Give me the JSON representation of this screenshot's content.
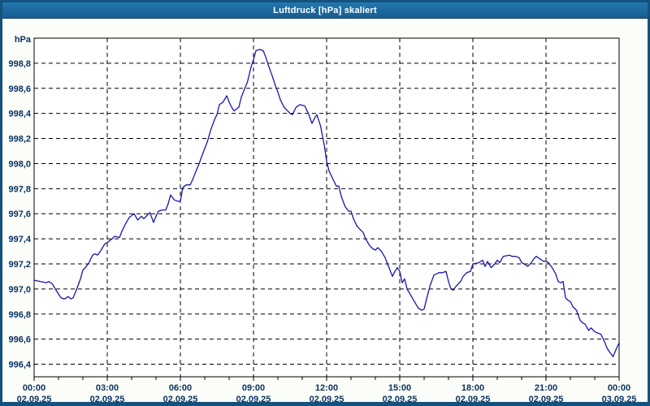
{
  "window": {
    "title": "Luftdruck [hPa] skaliert"
  },
  "colors": {
    "titlebar": "#1b6ba4",
    "window_border": "#14517d",
    "chart_background": "#fbfdf9",
    "plot_background": "#ffffff",
    "grid": "#000000",
    "axis": "#000000",
    "label": "#0b3261",
    "line": "#1616aa"
  },
  "chart_data": {
    "type": "line",
    "title": "Luftdruck [hPa] skaliert",
    "ylabel": "hPa",
    "unit_label": "hPa",
    "grid": "dashed",
    "legend": "none",
    "xlim_hours": [
      0,
      24
    ],
    "ylim": [
      996.3,
      999.0
    ],
    "y_ticks": [
      998.8,
      998.6,
      998.4,
      998.2,
      998.0,
      997.8,
      997.6,
      997.4,
      997.2,
      997.0,
      996.8,
      996.6,
      996.4
    ],
    "y_tick_labels": [
      "998,8",
      "998,6",
      "998,4",
      "998,2",
      "998,0",
      "997,8",
      "997,6",
      "997,4",
      "997,2",
      "997,0",
      "996,8",
      "996,6",
      "996,4"
    ],
    "x_ticks": [
      {
        "hour": 0,
        "time": "00:00",
        "date": "02.09.25"
      },
      {
        "hour": 3,
        "time": "03:00",
        "date": "02.09.25"
      },
      {
        "hour": 6,
        "time": "06:00",
        "date": "02.09.25"
      },
      {
        "hour": 9,
        "time": "09:00",
        "date": "02.09.25"
      },
      {
        "hour": 12,
        "time": "12:00",
        "date": "02.09.25"
      },
      {
        "hour": 15,
        "time": "15:00",
        "date": "02.09.25"
      },
      {
        "hour": 18,
        "time": "18:00",
        "date": "02.09.25"
      },
      {
        "hour": 21,
        "time": "21:00",
        "date": "02.09.25"
      },
      {
        "hour": 24,
        "time": "00:00",
        "date": "03.09.25"
      }
    ],
    "x_grid_hours": [
      3,
      6,
      9,
      12,
      15,
      18,
      21
    ],
    "minor_tick_every_hours": 1,
    "series": [
      {
        "name": "Luftdruck",
        "x_hours": [
          0,
          0.25,
          0.5,
          0.6,
          0.75,
          0.9,
          1.0,
          1.1,
          1.25,
          1.4,
          1.5,
          1.6,
          1.75,
          1.9,
          2.0,
          2.1,
          2.25,
          2.4,
          2.5,
          2.6,
          2.75,
          2.9,
          3.0,
          3.2,
          3.3,
          3.5,
          3.6,
          3.75,
          3.9,
          4.1,
          4.25,
          4.4,
          4.5,
          4.6,
          4.75,
          4.9,
          5.0,
          5.1,
          5.25,
          5.4,
          5.5,
          5.6,
          5.75,
          5.9,
          6.0,
          6.1,
          6.25,
          6.4,
          6.5,
          6.6,
          6.75,
          6.9,
          7.0,
          7.1,
          7.25,
          7.4,
          7.5,
          7.6,
          7.75,
          7.9,
          8.0,
          8.1,
          8.2,
          8.4,
          8.5,
          8.6,
          8.75,
          8.9,
          9.0,
          9.1,
          9.25,
          9.4,
          9.5,
          9.6,
          9.75,
          9.9,
          10.0,
          10.1,
          10.25,
          10.5,
          10.6,
          10.75,
          10.9,
          11.1,
          11.25,
          11.4,
          11.5,
          11.6,
          11.75,
          11.9,
          12.0,
          12.1,
          12.25,
          12.4,
          12.5,
          12.6,
          12.75,
          12.9,
          13.0,
          13.1,
          13.25,
          13.4,
          13.5,
          13.6,
          13.75,
          13.9,
          14.0,
          14.1,
          14.25,
          14.4,
          14.5,
          14.6,
          14.7,
          14.8,
          14.9,
          15.0,
          15.1,
          15.2,
          15.3,
          15.45,
          15.6,
          15.75,
          15.9,
          16.0,
          16.1,
          16.25,
          16.4,
          16.5,
          16.6,
          16.75,
          16.9,
          17.0,
          17.1,
          17.2,
          17.3,
          17.5,
          17.6,
          17.75,
          17.9,
          18.0,
          18.25,
          18.4,
          18.5,
          18.6,
          18.75,
          18.9,
          19.0,
          19.1,
          19.25,
          19.5,
          19.6,
          19.75,
          19.9,
          20.0,
          20.1,
          20.25,
          20.4,
          20.5,
          20.6,
          20.75,
          20.9,
          21.0,
          21.1,
          21.25,
          21.4,
          21.5,
          21.6,
          21.7,
          21.8,
          21.9,
          22.0,
          22.1,
          22.25,
          22.4,
          22.5,
          22.6,
          22.75,
          22.85,
          23.0,
          23.1,
          23.25,
          23.4,
          23.5,
          23.6,
          23.75,
          23.9,
          24.0
        ],
        "values": [
          997.07,
          997.06,
          997.05,
          997.06,
          997.04,
          996.99,
          996.96,
          996.93,
          996.92,
          996.94,
          996.92,
          996.93,
          997.0,
          997.08,
          997.15,
          997.17,
          997.21,
          997.27,
          997.28,
          997.27,
          997.31,
          997.36,
          997.37,
          997.4,
          997.42,
          997.41,
          997.46,
          997.52,
          997.57,
          997.6,
          997.55,
          997.58,
          997.56,
          997.58,
          997.61,
          997.53,
          997.58,
          997.62,
          997.63,
          997.63,
          997.68,
          997.75,
          997.71,
          997.7,
          997.7,
          997.81,
          997.83,
          997.83,
          997.87,
          997.92,
          997.99,
          998.07,
          998.12,
          998.17,
          998.27,
          998.35,
          998.39,
          998.47,
          998.49,
          998.54,
          998.49,
          998.45,
          998.42,
          998.45,
          998.53,
          998.58,
          998.65,
          998.77,
          998.83,
          998.9,
          998.91,
          998.9,
          998.85,
          998.79,
          998.71,
          998.62,
          998.57,
          998.51,
          998.45,
          998.4,
          998.39,
          998.45,
          998.47,
          998.46,
          998.4,
          998.32,
          998.36,
          998.39,
          998.3,
          998.15,
          998.02,
          997.94,
          997.88,
          997.82,
          997.82,
          997.74,
          997.66,
          997.62,
          997.62,
          997.56,
          997.5,
          997.47,
          997.45,
          997.4,
          997.35,
          997.32,
          997.31,
          997.33,
          997.3,
          997.25,
          997.2,
          997.15,
          997.1,
          997.14,
          997.17,
          997.14,
          997.05,
          997.08,
          997.0,
          996.95,
          996.9,
          996.85,
          996.83,
          996.84,
          996.92,
          997.03,
          997.11,
          997.12,
          997.13,
          997.13,
          997.14,
          997.06,
          997.0,
          996.99,
          997.02,
          997.06,
          997.1,
          997.13,
          997.14,
          997.2,
          997.21,
          997.23,
          997.18,
          997.22,
          997.17,
          997.2,
          997.23,
          997.21,
          997.26,
          997.27,
          997.26,
          997.26,
          997.25,
          997.21,
          997.2,
          997.18,
          997.21,
          997.24,
          997.26,
          997.24,
          997.22,
          997.22,
          997.21,
          997.17,
          997.12,
          997.06,
          997.05,
          997.06,
          996.93,
          996.91,
          996.9,
          996.86,
          996.83,
          996.75,
          996.73,
          996.72,
          996.67,
          996.69,
          996.66,
          996.65,
          996.64,
          996.58,
          996.53,
          996.5,
          996.46,
          996.53,
          996.57
        ]
      }
    ]
  }
}
